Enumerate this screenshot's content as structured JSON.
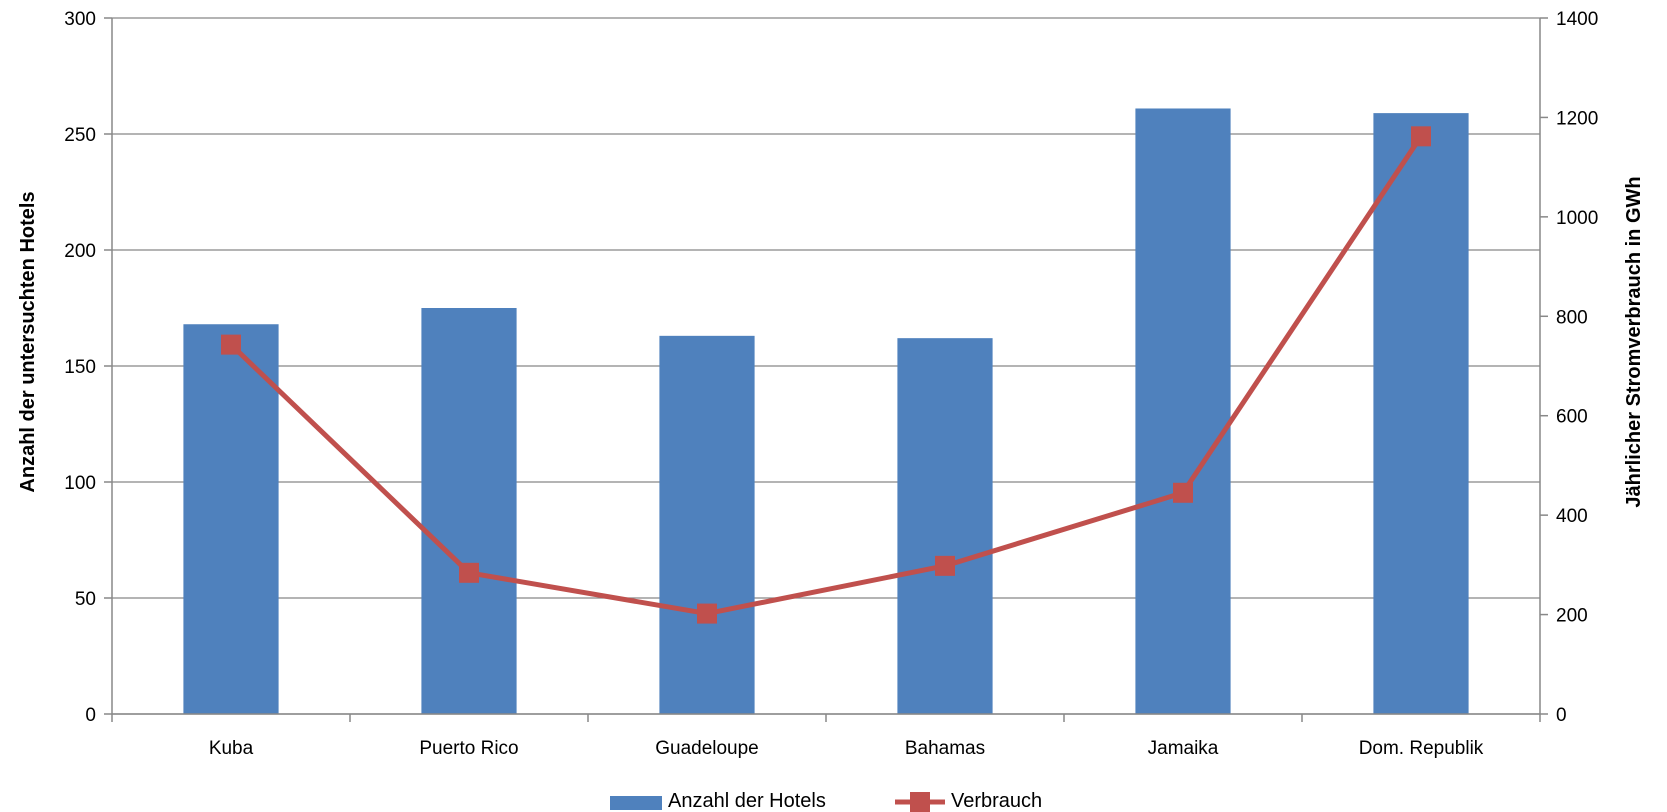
{
  "chart_data": {
    "type": "bar",
    "categories": [
      "Kuba",
      "Puerto Rico",
      "Guadeloupe",
      "Bahamas",
      "Jamaika",
      "Dom. Republik"
    ],
    "series": [
      {
        "name": "Anzahl der Hotels",
        "kind": "bar",
        "axis": "left",
        "color": "#4F81BD",
        "values": [
          168,
          175,
          163,
          162,
          261,
          259
        ]
      },
      {
        "name": "Verbrauch",
        "kind": "line",
        "axis": "right",
        "color": "#C0504D",
        "values": [
          743,
          284,
          202,
          298,
          445,
          1162
        ]
      }
    ],
    "ylabel": "Anzahl der untersuchten Hotels",
    "ylabel_right": "Jährlicher Stromverbrauch in GWh",
    "ylim": [
      0,
      300
    ],
    "ylim_right": [
      0,
      1400
    ],
    "yticks": [
      "0",
      "50",
      "100",
      "150",
      "200",
      "250",
      "300"
    ],
    "yticks_right": [
      "0",
      "200",
      "400",
      "600",
      "800",
      "1000",
      "1200",
      "1400"
    ],
    "grid": true,
    "legend_position": "bottom"
  }
}
